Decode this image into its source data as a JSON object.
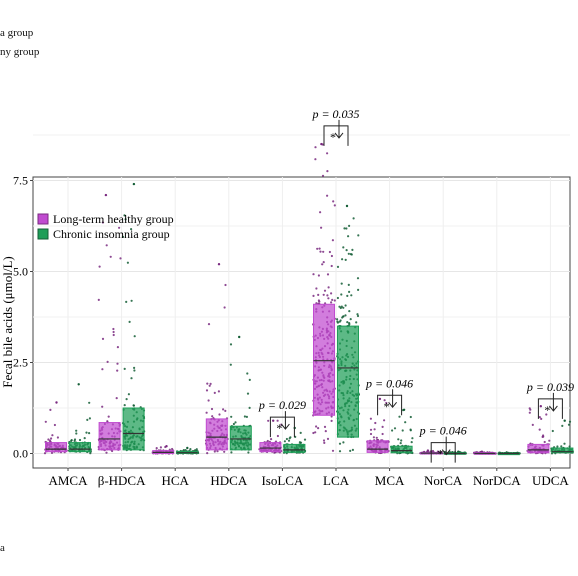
{
  "page": {
    "top_fragments": [
      "a group",
      "ny group"
    ],
    "bottom_fragment": "a"
  },
  "chart_data": {
    "type": "box",
    "ylabel": "Fecal bile acids (μmol/L)",
    "ylim": [
      -0.3,
      9.5
    ],
    "yticks": [
      "0.0",
      "2.5",
      "5.0",
      "7.5"
    ],
    "ytick_values": [
      0,
      2.5,
      5,
      7.5
    ],
    "grid": true,
    "legend_position": "top-left",
    "colors": {
      "healthy": "#c04bd0",
      "insomnia": "#1e9e58",
      "healthy_point": "#7a2a80",
      "insomnia_point": "#145e36"
    },
    "categories": [
      "AMCA",
      "β-HDCA",
      "HCA",
      "HDCA",
      "IsoLCA",
      "LCA",
      "MCA",
      "NorCA",
      "NorDCA",
      "UDCA"
    ],
    "series": [
      {
        "name": "Long-term healthy group",
        "boxes": [
          {
            "q1": 0.05,
            "median": 0.12,
            "q3": 0.3,
            "max": 1.4
          },
          {
            "q1": 0.1,
            "median": 0.4,
            "q3": 0.85,
            "max": 7.1
          },
          {
            "q1": 0.0,
            "median": 0.03,
            "q3": 0.08,
            "max": 0.2
          },
          {
            "q1": 0.1,
            "median": 0.45,
            "q3": 0.95,
            "max": 5.2
          },
          {
            "q1": 0.05,
            "median": 0.15,
            "q3": 0.3,
            "max": 0.9
          },
          {
            "q1": 1.05,
            "median": 2.55,
            "q3": 4.1,
            "max": 8.5
          },
          {
            "q1": 0.03,
            "median": 0.12,
            "q3": 0.35,
            "max": 1.5
          },
          {
            "q1": 0.0,
            "median": 0.01,
            "q3": 0.03,
            "max": 0.08
          },
          {
            "q1": 0.0,
            "median": 0.0,
            "q3": 0.02,
            "max": 0.05
          },
          {
            "q1": 0.02,
            "median": 0.1,
            "q3": 0.25,
            "max": 1.3
          }
        ]
      },
      {
        "name": "Chronic insomnia group",
        "boxes": [
          {
            "q1": 0.05,
            "median": 0.12,
            "q3": 0.3,
            "max": 1.9
          },
          {
            "q1": 0.1,
            "median": 0.55,
            "q3": 1.25,
            "max": 7.4
          },
          {
            "q1": 0.0,
            "median": 0.02,
            "q3": 0.06,
            "max": 0.15
          },
          {
            "q1": 0.1,
            "median": 0.4,
            "q3": 0.75,
            "max": 3.2
          },
          {
            "q1": 0.03,
            "median": 0.1,
            "q3": 0.25,
            "max": 0.7
          },
          {
            "q1": 0.45,
            "median": 2.35,
            "q3": 3.5,
            "max": 6.8
          },
          {
            "q1": 0.02,
            "median": 0.08,
            "q3": 0.2,
            "max": 1.2
          },
          {
            "q1": 0.0,
            "median": 0.0,
            "q3": 0.02,
            "max": 0.05
          },
          {
            "q1": 0.0,
            "median": 0.0,
            "q3": 0.01,
            "max": 0.03
          },
          {
            "q1": 0.02,
            "median": 0.05,
            "q3": 0.15,
            "max": 0.9
          }
        ]
      }
    ],
    "annotations": [
      {
        "category": "IsoLCA",
        "label": "p = 0.029",
        "star": "*",
        "bracket_at": 1.0
      },
      {
        "category": "LCA",
        "label": "p = 0.035",
        "star": "*",
        "bracket_at": 9.0
      },
      {
        "category": "MCA",
        "label": "p = 0.046",
        "star": "*",
        "bracket_at": 1.6
      },
      {
        "category": "NorCA",
        "label": "p = 0.046",
        "star": "*",
        "bracket_at": 0.3
      },
      {
        "category": "UDCA",
        "label": "p = 0.039",
        "star": "*",
        "bracket_at": 1.5
      }
    ]
  }
}
